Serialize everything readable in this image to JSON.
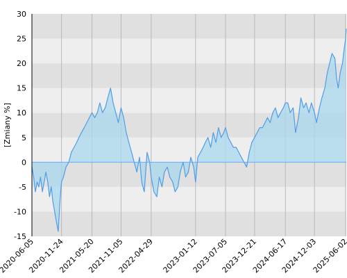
{
  "chart_data": {
    "type": "area",
    "ylabel": "[Zmiany %]",
    "xlabel": "",
    "ylim": [
      -15,
      30
    ],
    "yticks": [
      -15,
      -10,
      -5,
      0,
      5,
      10,
      15,
      20,
      25,
      30
    ],
    "xlim": [
      "2020-06-05",
      "2025-06-06"
    ],
    "xticks": [
      "2020-06-05",
      "2020-11-24",
      "2021-05-20",
      "2021-11-05",
      "2022-04-29",
      "2023-01-12",
      "2023-07-05",
      "2023-12-21",
      "2024-06-17",
      "2024-12-03",
      "2025-06-02"
    ],
    "grid": true,
    "legend": "none",
    "colors": {
      "line": "#4f9ce8",
      "fill": "#a8d8ee",
      "band_dark": "#e0e0e0",
      "band_light": "#eeeeee",
      "gridline": "#b8b8b8",
      "zero_line": "#66aaff"
    },
    "series": [
      {
        "x": [
          "2020-06-05",
          "2020-06-15",
          "2020-06-25",
          "2020-07-05",
          "2020-07-15",
          "2020-07-25",
          "2020-08-05",
          "2020-08-15",
          "2020-08-25",
          "2020-09-05",
          "2020-09-15",
          "2020-09-25",
          "2020-10-05",
          "2020-10-15",
          "2020-10-25",
          "2020-11-05",
          "2020-11-15",
          "2020-11-24",
          "2020-12-05",
          "2020-12-20",
          "2021-01-05",
          "2021-01-20",
          "2021-02-05",
          "2021-02-20",
          "2021-03-05",
          "2021-03-20",
          "2021-04-05",
          "2021-04-20",
          "2021-05-05",
          "2021-05-20",
          "2021-06-05",
          "2021-06-20",
          "2021-07-05",
          "2021-07-20",
          "2021-08-05",
          "2021-08-20",
          "2021-09-05",
          "2021-09-20",
          "2021-10-05",
          "2021-10-20",
          "2021-11-05",
          "2021-11-20",
          "2021-12-05",
          "2021-12-20",
          "2022-01-05",
          "2022-01-20",
          "2022-02-05",
          "2022-02-20",
          "2022-03-05",
          "2022-03-20",
          "2022-04-05",
          "2022-04-20",
          "2022-04-29",
          "2022-05-15",
          "2022-06-01",
          "2022-06-15",
          "2022-07-01",
          "2022-07-15",
          "2022-08-01",
          "2022-08-15",
          "2022-09-01",
          "2022-09-15",
          "2022-10-01",
          "2022-10-15",
          "2022-11-01",
          "2022-11-15",
          "2022-12-01",
          "2022-12-15",
          "2023-01-01",
          "2023-01-12",
          "2023-01-25",
          "2023-02-10",
          "2023-02-25",
          "2023-03-10",
          "2023-03-25",
          "2023-04-10",
          "2023-04-25",
          "2023-05-10",
          "2023-05-25",
          "2023-06-10",
          "2023-06-25",
          "2023-07-05",
          "2023-07-20",
          "2023-08-05",
          "2023-08-20",
          "2023-09-05",
          "2023-09-20",
          "2023-10-05",
          "2023-10-20",
          "2023-11-05",
          "2023-11-20",
          "2023-12-05",
          "2023-12-21",
          "2024-01-05",
          "2024-01-20",
          "2024-02-05",
          "2024-02-20",
          "2024-03-05",
          "2024-03-20",
          "2024-04-05",
          "2024-04-20",
          "2024-05-05",
          "2024-05-20",
          "2024-06-05",
          "2024-06-17",
          "2024-07-01",
          "2024-07-15",
          "2024-08-01",
          "2024-08-15",
          "2024-09-01",
          "2024-09-15",
          "2024-10-01",
          "2024-10-15",
          "2024-11-01",
          "2024-11-15",
          "2024-12-03",
          "2024-12-15",
          "2025-01-01",
          "2025-01-15",
          "2025-02-01",
          "2025-02-15",
          "2025-03-01",
          "2025-03-15",
          "2025-04-01",
          "2025-04-10",
          "2025-04-20",
          "2025-05-01",
          "2025-05-15",
          "2025-05-25",
          "2025-06-02",
          "2025-06-06"
        ],
        "values": [
          -1,
          -3,
          -6,
          -4,
          -5,
          -3,
          -6,
          -4,
          -2,
          -4,
          -7,
          -5,
          -8,
          -10,
          -12,
          -14,
          -8,
          -4,
          -3,
          -1,
          0,
          2,
          3,
          4,
          5,
          6,
          7,
          8,
          9,
          10,
          9,
          10,
          12,
          10,
          11,
          13,
          15,
          12,
          10,
          8,
          11,
          9,
          6,
          4,
          2,
          0,
          -2,
          1,
          -4,
          -6,
          2,
          0,
          -3,
          -6,
          -7,
          -3,
          -5,
          -2,
          -1,
          -3,
          -4,
          -6,
          -5,
          -2,
          0,
          -3,
          -2,
          1,
          -1,
          -4,
          1,
          2,
          3,
          4,
          5,
          3,
          6,
          4,
          7,
          5,
          6,
          7,
          5,
          4,
          3,
          3,
          2,
          1,
          0,
          -1,
          2,
          4,
          5,
          6,
          7,
          7,
          8,
          9,
          8,
          10,
          11,
          9,
          10,
          11,
          12,
          12,
          10,
          11,
          6,
          9,
          13,
          11,
          12,
          10,
          12,
          10,
          8,
          11,
          13,
          15,
          18,
          20,
          22,
          21,
          17,
          15,
          18,
          20,
          23,
          25,
          27
        ]
      }
    ]
  }
}
